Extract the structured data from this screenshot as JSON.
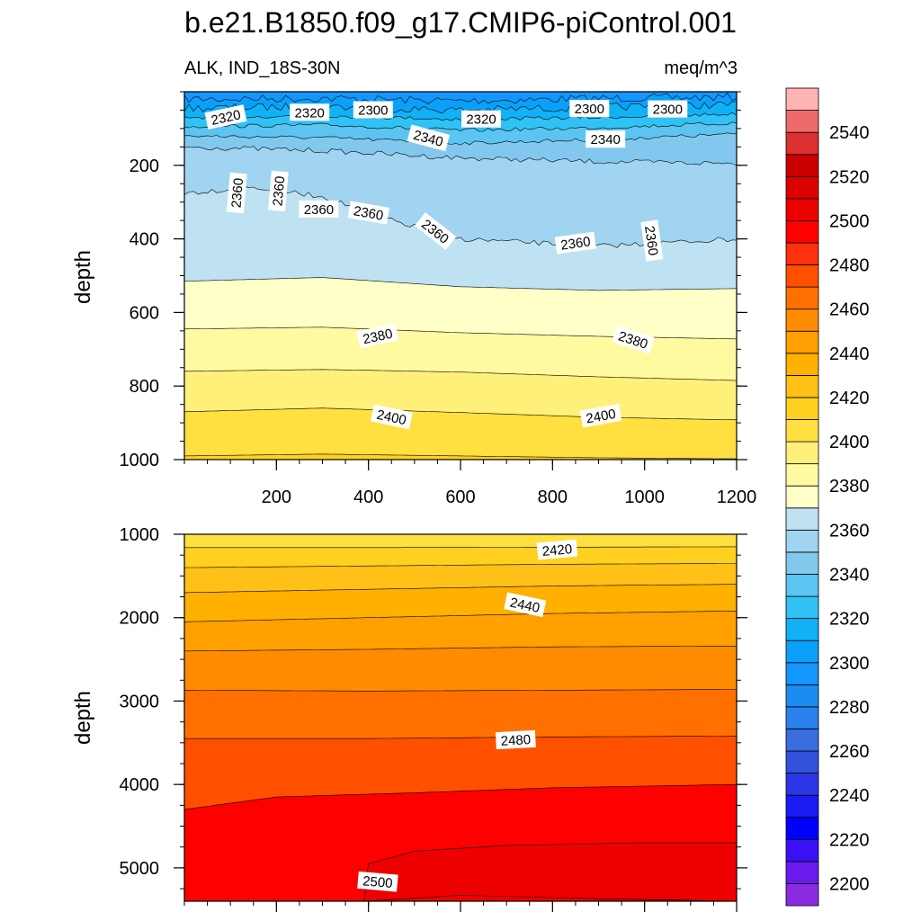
{
  "figure": {
    "title": "b.e21.B1850.f09_g17.CMIP6-piControl.001",
    "variable_label": "ALK, IND_18S-30N",
    "units_label": "meq/m^3"
  },
  "colorbar": {
    "levels": [
      2200,
      2210,
      2220,
      2230,
      2240,
      2250,
      2260,
      2270,
      2280,
      2290,
      2300,
      2310,
      2320,
      2330,
      2340,
      2350,
      2360,
      2370,
      2380,
      2390,
      2400,
      2410,
      2420,
      2430,
      2440,
      2450,
      2460,
      2470,
      2480,
      2490,
      2500,
      2510,
      2520,
      2530,
      2540,
      2550
    ],
    "colors": [
      "#8a2be2",
      "#6a1aec",
      "#3c10f5",
      "#0000ff",
      "#1a1af5",
      "#2a36e6",
      "#3250dc",
      "#3a6ee0",
      "#2a80ec",
      "#1a8cf2",
      "#1496ff",
      "#0aa0fa",
      "#10b2f5",
      "#30c2f5",
      "#5cc4f0",
      "#82c8ee",
      "#a0d4f0",
      "#bee2f2",
      "#ffffc8",
      "#fffaa0",
      "#fff07a",
      "#ffe040",
      "#ffd020",
      "#ffc018",
      "#ffb000",
      "#ffa000",
      "#ff8c00",
      "#ff7000",
      "#ff5000",
      "#ff3010",
      "#ff0000",
      "#ee0000",
      "#dd0000",
      "#cc0000",
      "#dd3030",
      "#ee6a6a",
      "#ffb4b4"
    ],
    "tick_labels": [
      "2200",
      "2220",
      "2240",
      "2260",
      "2280",
      "2300",
      "2320",
      "2340",
      "2360",
      "2380",
      "2400",
      "2420",
      "2440",
      "2460",
      "2480",
      "2500",
      "2520",
      "2540"
    ]
  },
  "chart_data": [
    {
      "type": "contour",
      "panel": "upper",
      "ylabel": "depth",
      "xlim": [
        0,
        1200
      ],
      "ylim": [
        1000,
        0
      ],
      "x_ticks": [
        "200",
        "400",
        "600",
        "800",
        "1000",
        "1200"
      ],
      "y_ticks": [
        "200",
        "400",
        "600",
        "800",
        "1000"
      ],
      "contours": [
        {
          "level": 2300,
          "depth": [
            [
              0,
              20
            ],
            [
              300,
              18
            ],
            [
              600,
              25
            ],
            [
              900,
              18
            ],
            [
              1200,
              15
            ]
          ]
        },
        {
          "level": 2310,
          "depth": [
            [
              0,
              45
            ],
            [
              300,
              40
            ],
            [
              600,
              50
            ],
            [
              900,
              42
            ],
            [
              1200,
              35
            ]
          ]
        },
        {
          "level": 2320,
          "depth": [
            [
              0,
              70
            ],
            [
              300,
              65
            ],
            [
              600,
              75
            ],
            [
              900,
              70
            ],
            [
              1200,
              60
            ]
          ]
        },
        {
          "level": 2330,
          "depth": [
            [
              0,
              95
            ],
            [
              300,
              90
            ],
            [
              600,
              105
            ],
            [
              900,
              98
            ],
            [
              1200,
              85
            ]
          ]
        },
        {
          "level": 2340,
          "depth": [
            [
              0,
              120
            ],
            [
              300,
              125
            ],
            [
              600,
              140
            ],
            [
              900,
              130
            ],
            [
              1200,
              115
            ]
          ]
        },
        {
          "level": 2350,
          "depth": [
            [
              0,
              150
            ],
            [
              300,
              160
            ],
            [
              600,
              180
            ],
            [
              900,
              190
            ],
            [
              1200,
              195
            ]
          ]
        },
        {
          "level": 2360,
          "depth": [
            [
              0,
              275
            ],
            [
              150,
              260
            ],
            [
              300,
              285
            ],
            [
              450,
              350
            ],
            [
              600,
              400
            ],
            [
              750,
              410
            ],
            [
              900,
              420
            ],
            [
              1050,
              410
            ],
            [
              1200,
              400
            ]
          ]
        },
        {
          "level": 2370,
          "depth": [
            [
              0,
              515
            ],
            [
              300,
              505
            ],
            [
              600,
              530
            ],
            [
              900,
              540
            ],
            [
              1200,
              535
            ]
          ]
        },
        {
          "level": 2380,
          "depth": [
            [
              0,
              645
            ],
            [
              300,
              640
            ],
            [
              600,
              655
            ],
            [
              900,
              665
            ],
            [
              1200,
              672
            ]
          ]
        },
        {
          "level": 2390,
          "depth": [
            [
              0,
              760
            ],
            [
              300,
              755
            ],
            [
              600,
              762
            ],
            [
              900,
              775
            ],
            [
              1200,
              785
            ]
          ]
        },
        {
          "level": 2400,
          "depth": [
            [
              0,
              870
            ],
            [
              300,
              860
            ],
            [
              600,
              872
            ],
            [
              900,
              885
            ],
            [
              1200,
              892
            ]
          ]
        },
        {
          "level": 2410,
          "depth": [
            [
              0,
              990
            ],
            [
              300,
              985
            ],
            [
              600,
              990
            ],
            [
              900,
              995
            ],
            [
              1200,
              998
            ]
          ]
        }
      ],
      "labels": [
        {
          "text": "2320",
          "x": 90,
          "d": 70,
          "angle": -12
        },
        {
          "text": "2320",
          "x": 272,
          "d": 57,
          "angle": 0
        },
        {
          "text": "2300",
          "x": 410,
          "d": 50,
          "angle": 0
        },
        {
          "text": "2320",
          "x": 645,
          "d": 75,
          "angle": 0
        },
        {
          "text": "2300",
          "x": 880,
          "d": 47,
          "angle": 0
        },
        {
          "text": "2300",
          "x": 1050,
          "d": 48,
          "angle": 0
        },
        {
          "text": "2340",
          "x": 530,
          "d": 127,
          "angle": 15
        },
        {
          "text": "2340",
          "x": 915,
          "d": 130,
          "angle": 0
        },
        {
          "text": "2360",
          "x": 115,
          "d": 275,
          "angle": -85
        },
        {
          "text": "2360",
          "x": 205,
          "d": 270,
          "angle": -85
        },
        {
          "text": "2360",
          "x": 292,
          "d": 320,
          "angle": 0
        },
        {
          "text": "2360",
          "x": 400,
          "d": 330,
          "angle": 10
        },
        {
          "text": "2360",
          "x": 545,
          "d": 380,
          "angle": 38
        },
        {
          "text": "2360",
          "x": 850,
          "d": 412,
          "angle": -8
        },
        {
          "text": "2360",
          "x": 1015,
          "d": 405,
          "angle": 82
        },
        {
          "text": "2380",
          "x": 420,
          "d": 665,
          "angle": -12
        },
        {
          "text": "2380",
          "x": 975,
          "d": 675,
          "angle": 18
        },
        {
          "text": "2400",
          "x": 450,
          "d": 885,
          "angle": 12
        },
        {
          "text": "2400",
          "x": 905,
          "d": 882,
          "angle": -10
        }
      ]
    },
    {
      "type": "contour",
      "panel": "lower",
      "ylabel": "depth",
      "xlim": [
        0,
        1200
      ],
      "ylim": [
        5400,
        1000
      ],
      "y_ticks": [
        "1000",
        "2000",
        "3000",
        "4000",
        "5000"
      ],
      "contours": [
        {
          "level": 2410,
          "depth": [
            [
              0,
              1160
            ],
            [
              400,
              1160
            ],
            [
              800,
              1155
            ],
            [
              1200,
              1150
            ]
          ]
        },
        {
          "level": 2420,
          "depth": [
            [
              0,
              1400
            ],
            [
              400,
              1380
            ],
            [
              800,
              1360
            ],
            [
              1200,
              1350
            ]
          ]
        },
        {
          "level": 2430,
          "depth": [
            [
              0,
              1700
            ],
            [
              400,
              1660
            ],
            [
              800,
              1620
            ],
            [
              1200,
              1600
            ]
          ]
        },
        {
          "level": 2440,
          "depth": [
            [
              0,
              2050
            ],
            [
              400,
              2000
            ],
            [
              800,
              1950
            ],
            [
              1200,
              1920
            ]
          ]
        },
        {
          "level": 2450,
          "depth": [
            [
              0,
              2400
            ],
            [
              400,
              2380
            ],
            [
              800,
              2350
            ],
            [
              1200,
              2340
            ]
          ]
        },
        {
          "level": 2460,
          "depth": [
            [
              0,
              2870
            ],
            [
              400,
              2880
            ],
            [
              800,
              2870
            ],
            [
              1200,
              2860
            ]
          ]
        },
        {
          "level": 2470,
          "depth": [
            [
              0,
              3450
            ],
            [
              400,
              3450
            ],
            [
              800,
              3430
            ],
            [
              1200,
              3420
            ]
          ]
        },
        {
          "level": 2480,
          "depth": [
            [
              0,
              4300
            ],
            [
              200,
              4150
            ],
            [
              500,
              4100
            ],
            [
              800,
              4040
            ],
            [
              1200,
              4000
            ]
          ]
        }
      ],
      "labels": [
        {
          "text": "2420",
          "x": 810,
          "d": 1190,
          "angle": -5
        },
        {
          "text": "2440",
          "x": 740,
          "d": 1850,
          "angle": 12
        },
        {
          "text": "2480",
          "x": 720,
          "d": 3470,
          "angle": -3
        },
        {
          "text": "2500",
          "x": 420,
          "d": 5170,
          "angle": 5
        }
      ]
    }
  ]
}
